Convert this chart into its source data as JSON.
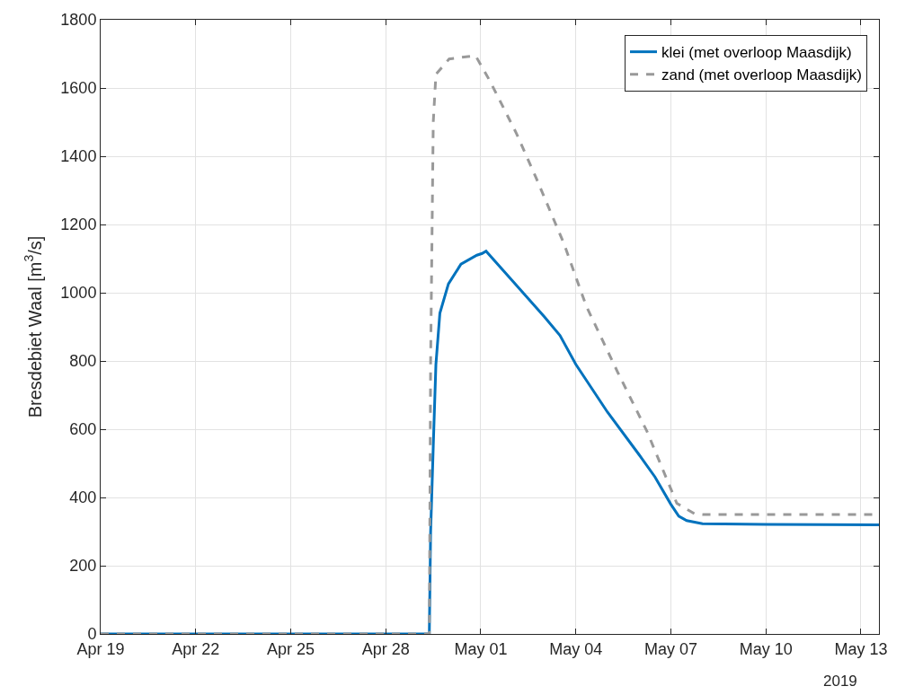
{
  "chart_data": {
    "type": "line",
    "ylabel": "Bresdebiet Waal [m$^{3}$/s]",
    "xlim": [
      "2019-04-19",
      "2019-05-13T13:40"
    ],
    "xticks": [
      {
        "value": "2019-04-19",
        "label": "Apr 19"
      },
      {
        "value": "2019-04-22",
        "label": "Apr 22"
      },
      {
        "value": "2019-04-25",
        "label": "Apr 25"
      },
      {
        "value": "2019-04-28",
        "label": "Apr 28"
      },
      {
        "value": "2019-05-01",
        "label": "May 01"
      },
      {
        "value": "2019-05-04",
        "label": "May 04"
      },
      {
        "value": "2019-05-07",
        "label": "May 07"
      },
      {
        "value": "2019-05-10",
        "label": "May 10"
      },
      {
        "value": "2019-05-13",
        "label": "May 13"
      }
    ],
    "ylim": [
      0,
      1800
    ],
    "yticks": [
      0,
      200,
      400,
      600,
      800,
      1000,
      1200,
      1400,
      1600,
      1800
    ],
    "grid": true,
    "legend": "top right",
    "annotations": [
      "2019"
    ],
    "series": [
      {
        "name": "klei (met overloop Maasdijk)",
        "color": "#0072bd",
        "line_style": "solid",
        "x": [
          "2019-04-19",
          "2019-04-29T09:00",
          "2019-04-29T10:00",
          "2019-04-29T12:00",
          "2019-04-29T14:00",
          "2019-04-29T17:00",
          "2019-04-29T23:30",
          "2019-04-30T09:00",
          "2019-04-30T21:00",
          "2019-05-01T01:00",
          "2019-05-01T04:00",
          "2019-05-02",
          "2019-05-03",
          "2019-05-03T12:00",
          "2019-05-04",
          "2019-05-05",
          "2019-05-06",
          "2019-05-06T12:00",
          "2019-05-07",
          "2019-05-07T06:00",
          "2019-05-07T12:00",
          "2019-05-08",
          "2019-05-10",
          "2019-05-13T13:40"
        ],
        "values": [
          0,
          0,
          300,
          550,
          790,
          940,
          1026,
          1084,
          1110,
          1115,
          1122,
          1035,
          930,
          875,
          790,
          650,
          525,
          460,
          380,
          345,
          332,
          323,
          321,
          320
        ]
      },
      {
        "name": "zand (met overloop Maasdijk)",
        "color": "#999999",
        "line_style": "dashed",
        "x": [
          "2019-04-19",
          "2019-04-29T09:00",
          "2019-04-29T10:00",
          "2019-04-29T12:00",
          "2019-04-29T14:00",
          "2019-04-30",
          "2019-04-30T20:00",
          "2019-05-01T07:00",
          "2019-05-02T03:00",
          "2019-05-02T18:00",
          "2019-05-03T15:00",
          "2019-05-04T08:00",
          "2019-05-05T07:30",
          "2019-05-06T06:00",
          "2019-05-07T04:30",
          "2019-05-07T18:00",
          "2019-05-08",
          "2019-05-13T13:40"
        ],
        "values": [
          0,
          0,
          800,
          1500,
          1640,
          1685,
          1695,
          1620,
          1467,
          1336,
          1144,
          960,
          769,
          593,
          383,
          352,
          350,
          350
        ]
      }
    ]
  }
}
